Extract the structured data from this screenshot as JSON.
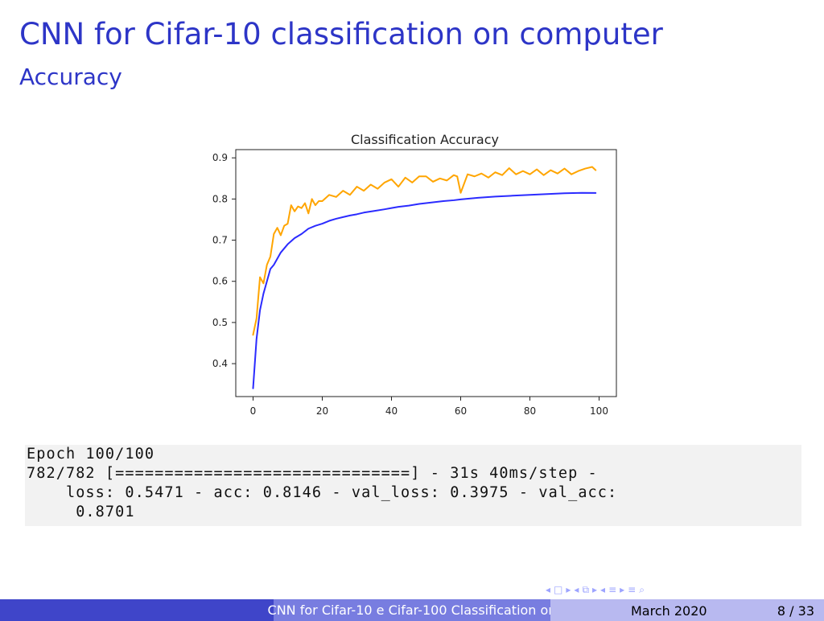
{
  "slide": {
    "title": "CNN for Cifar-10 classification on computer",
    "subtitle": "Accuracy"
  },
  "code": {
    "lines": [
      "Epoch 100/100",
      "782/782 [==============================] - 31s 40ms/step -",
      "    loss: 0.5471 - acc: 0.8146 - val_loss: 0.3975 - val_acc:",
      "     0.8701"
    ]
  },
  "footer": {
    "center_text": "CNN for Cifar-10 e Cifar-100 Classification on",
    "date": "March 2020",
    "page": "8 / 33",
    "colors": {
      "left_bg": "#3f45c9",
      "center_bg": "#787de0",
      "right_bg": "#b8b9f0"
    }
  },
  "nav": {
    "icons": [
      "nav-prev-icon",
      "nav-frame-icon",
      "nav-next-icon",
      "nav-subsection-prev-icon",
      "nav-subsection-icon",
      "nav-subsection-next-icon",
      "nav-section-prev-icon",
      "nav-section-icon",
      "nav-section-next-icon",
      "nav-document-icon",
      "nav-search-icon"
    ]
  },
  "chart_data": {
    "type": "line",
    "title": "Classification Accuracy",
    "xlabel": "",
    "ylabel": "",
    "xlim": [
      -5,
      105
    ],
    "ylim": [
      0.32,
      0.92
    ],
    "x_ticks": [
      0,
      20,
      40,
      60,
      80,
      100
    ],
    "y_ticks": [
      0.4,
      0.5,
      0.6,
      0.7,
      0.8,
      0.9
    ],
    "grid": false,
    "legend": "none",
    "series": [
      {
        "color": "#2b2bff",
        "x": [
          0,
          1,
          2,
          3,
          4,
          5,
          6,
          8,
          10,
          12,
          14,
          16,
          18,
          20,
          22,
          24,
          26,
          28,
          30,
          32,
          35,
          38,
          40,
          42,
          45,
          48,
          50,
          55,
          58,
          60,
          65,
          70,
          75,
          80,
          85,
          90,
          95,
          99
        ],
        "values": [
          0.34,
          0.46,
          0.53,
          0.57,
          0.6,
          0.63,
          0.64,
          0.67,
          0.69,
          0.705,
          0.715,
          0.728,
          0.735,
          0.74,
          0.747,
          0.752,
          0.756,
          0.76,
          0.763,
          0.767,
          0.771,
          0.775,
          0.778,
          0.781,
          0.784,
          0.788,
          0.79,
          0.795,
          0.797,
          0.799,
          0.803,
          0.806,
          0.808,
          0.81,
          0.812,
          0.814,
          0.815,
          0.8146
        ]
      },
      {
        "color": "#ffa500",
        "x": [
          0,
          1,
          2,
          3,
          4,
          5,
          6,
          7,
          8,
          9,
          10,
          11,
          12,
          13,
          14,
          15,
          16,
          17,
          18,
          19,
          20,
          22,
          24,
          26,
          28,
          30,
          32,
          34,
          36,
          38,
          40,
          42,
          44,
          46,
          48,
          50,
          52,
          54,
          56,
          58,
          59,
          60,
          62,
          64,
          66,
          68,
          70,
          72,
          74,
          76,
          78,
          80,
          82,
          84,
          86,
          88,
          90,
          92,
          94,
          96,
          98,
          99
        ],
        "values": [
          0.47,
          0.51,
          0.61,
          0.595,
          0.64,
          0.66,
          0.715,
          0.73,
          0.712,
          0.735,
          0.74,
          0.785,
          0.77,
          0.782,
          0.778,
          0.79,
          0.765,
          0.8,
          0.785,
          0.795,
          0.795,
          0.81,
          0.805,
          0.82,
          0.81,
          0.83,
          0.82,
          0.835,
          0.825,
          0.84,
          0.848,
          0.83,
          0.852,
          0.84,
          0.855,
          0.855,
          0.842,
          0.85,
          0.845,
          0.858,
          0.855,
          0.815,
          0.86,
          0.855,
          0.862,
          0.852,
          0.865,
          0.858,
          0.875,
          0.86,
          0.868,
          0.86,
          0.872,
          0.858,
          0.87,
          0.862,
          0.874,
          0.86,
          0.868,
          0.874,
          0.878,
          0.8701
        ]
      }
    ]
  }
}
